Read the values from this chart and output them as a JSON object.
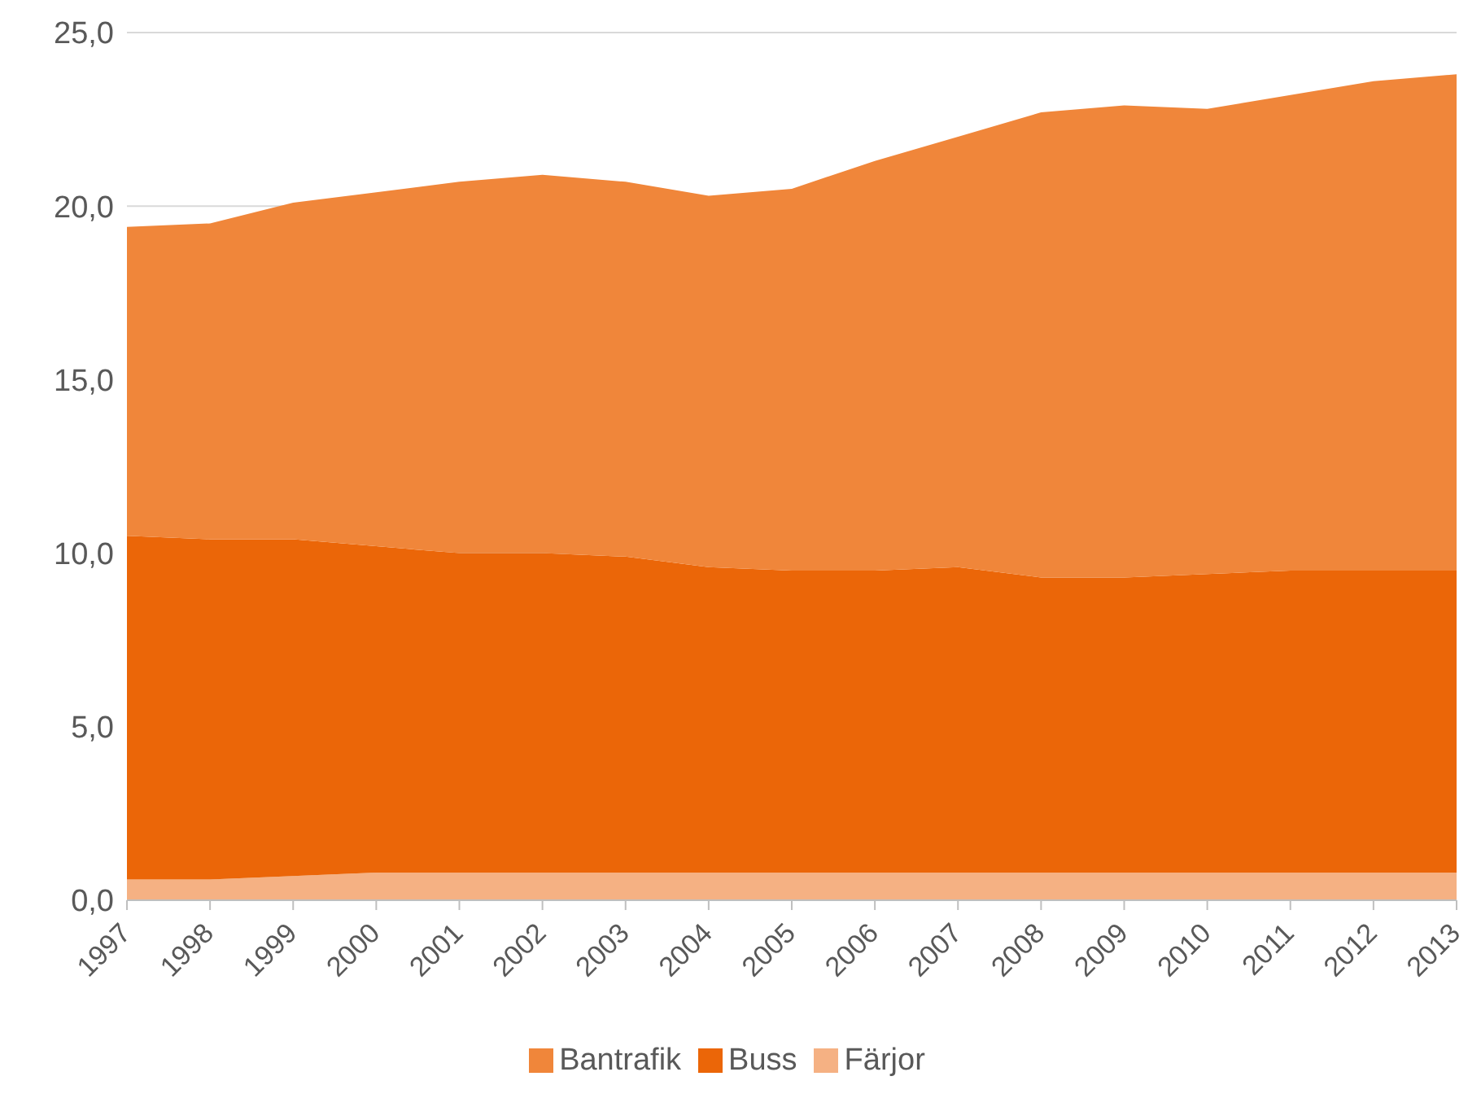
{
  "chart_data": {
    "type": "area",
    "stacked": true,
    "categories": [
      "1997",
      "1998",
      "1999",
      "2000",
      "2001",
      "2002",
      "2003",
      "2004",
      "2005",
      "2006",
      "2007",
      "2008",
      "2009",
      "2010",
      "2011",
      "2012",
      "2013"
    ],
    "series": [
      {
        "name": "Färjor",
        "color": "#f5b183",
        "values": [
          0.6,
          0.6,
          0.7,
          0.8,
          0.8,
          0.8,
          0.8,
          0.8,
          0.8,
          0.8,
          0.8,
          0.8,
          0.8,
          0.8,
          0.8,
          0.8,
          0.8
        ]
      },
      {
        "name": "Buss",
        "color": "#eb6608",
        "values": [
          9.9,
          9.8,
          9.7,
          9.4,
          9.2,
          9.2,
          9.1,
          8.8,
          8.7,
          8.7,
          8.8,
          8.5,
          8.5,
          8.6,
          8.7,
          8.7,
          8.7
        ]
      },
      {
        "name": "Bantrafik",
        "color": "#f0863a",
        "values": [
          8.9,
          9.1,
          9.7,
          10.2,
          10.7,
          10.9,
          10.8,
          10.7,
          11.0,
          11.8,
          12.4,
          13.4,
          13.6,
          13.4,
          13.7,
          14.1,
          14.3
        ]
      }
    ],
    "ylim": [
      0,
      25
    ],
    "yticks": [
      {
        "value": 0,
        "label": "0,0"
      },
      {
        "value": 5,
        "label": "5,0"
      },
      {
        "value": 10,
        "label": "10,0"
      },
      {
        "value": 15,
        "label": "15,0"
      },
      {
        "value": 20,
        "label": "20,0"
      },
      {
        "value": 25,
        "label": "25,0"
      }
    ],
    "grid": "y",
    "legend": "bottom"
  }
}
